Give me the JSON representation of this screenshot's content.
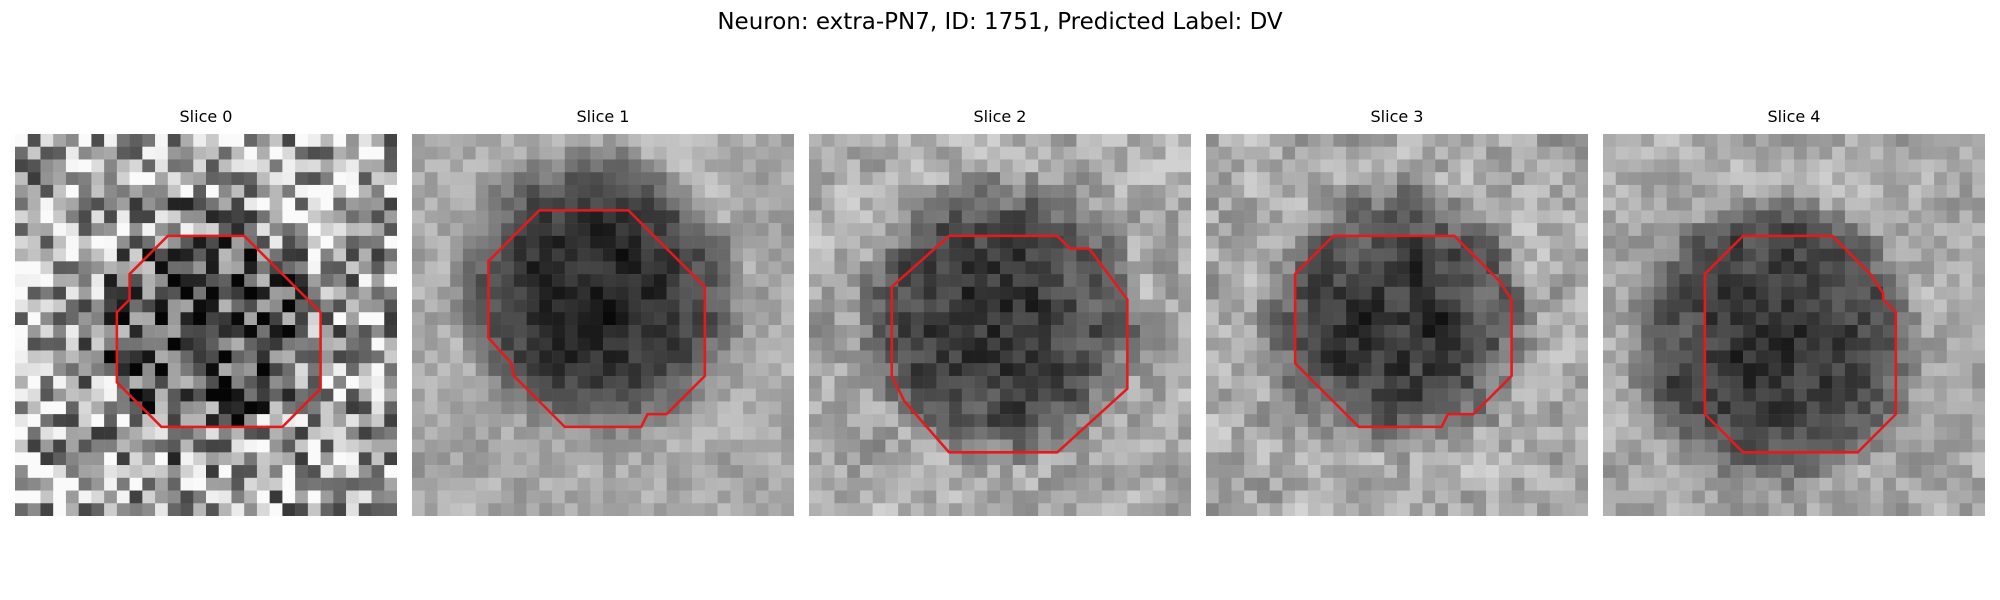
{
  "figure": {
    "title": "Neuron: extra-PN7, ID: 1751, Predicted Label: DV"
  },
  "colors": {
    "contour": "#e41a1c",
    "background": "#ffffff",
    "colormap": "gray"
  },
  "slices": [
    {
      "label": "Slice 0"
    },
    {
      "label": "Slice 1"
    },
    {
      "label": "Slice 2"
    },
    {
      "label": "Slice 3"
    },
    {
      "label": "Slice 4"
    }
  ]
}
